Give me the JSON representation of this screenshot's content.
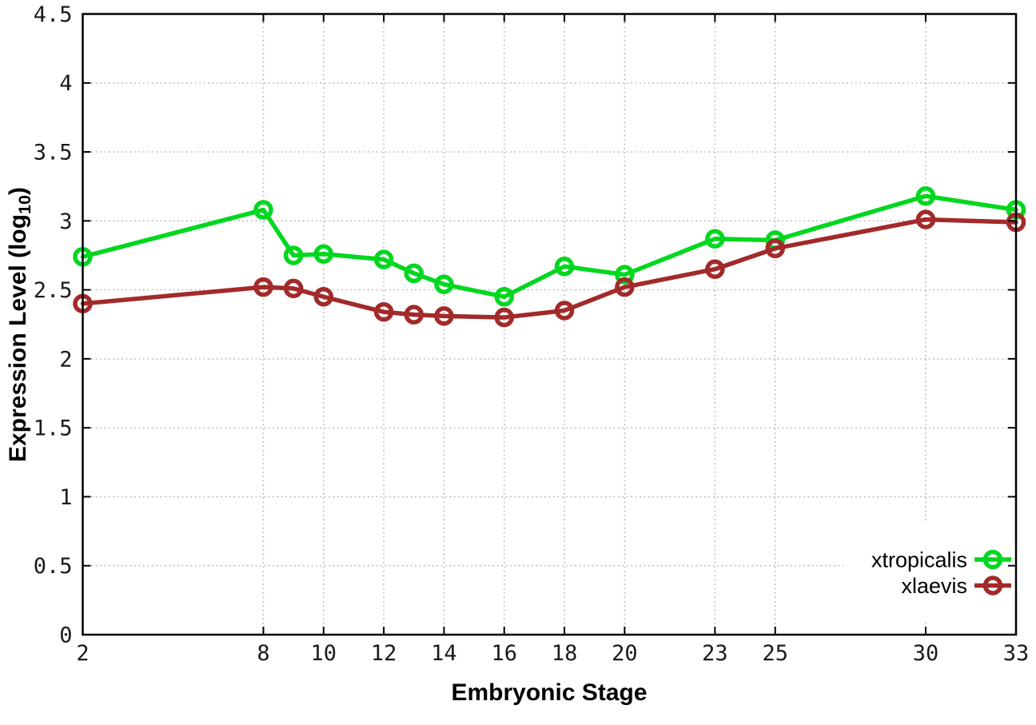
{
  "chart_data": {
    "type": "line",
    "title": "",
    "xlabel": "Embryonic Stage",
    "ylabel": "Expression Level (log10)",
    "ylabel_parts": {
      "pre": "Expression Level (log",
      "sub": "10",
      "post": ")"
    },
    "xlim": [
      2,
      33
    ],
    "ylim": [
      0,
      4.5
    ],
    "xticks": [
      2,
      8,
      10,
      12,
      14,
      16,
      18,
      20,
      23,
      25,
      30,
      33
    ],
    "yticks": [
      0,
      0.5,
      1,
      1.5,
      2,
      2.5,
      3,
      3.5,
      4,
      4.5
    ],
    "grid": true,
    "grid_style": "dotted",
    "legend_position": "bottom-right",
    "marker": "open-circle",
    "x": [
      2,
      8,
      9,
      10,
      12,
      13,
      14,
      16,
      18,
      20,
      23,
      25,
      30,
      33
    ],
    "series": [
      {
        "name": "xtropicalis",
        "color": "#00d71f",
        "values": [
          2.74,
          3.08,
          2.75,
          2.76,
          2.72,
          2.62,
          2.54,
          2.45,
          2.67,
          2.61,
          2.87,
          2.86,
          3.18,
          3.08
        ]
      },
      {
        "name": "xlaevis",
        "color": "#a22a2a",
        "values": [
          2.4,
          2.52,
          2.51,
          2.45,
          2.34,
          2.32,
          2.31,
          2.3,
          2.35,
          2.52,
          2.65,
          2.8,
          3.01,
          2.99
        ]
      }
    ],
    "colors": {
      "border": "#000000",
      "grid": "#ababab",
      "tick_text": "#1a1a1a",
      "background": "#ffffff"
    }
  }
}
